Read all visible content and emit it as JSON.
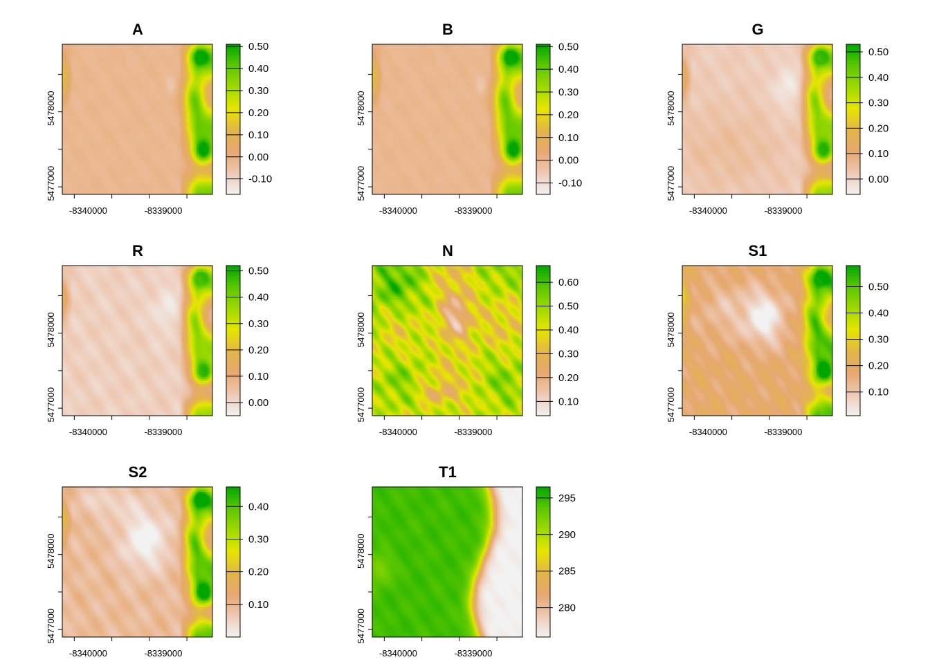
{
  "colors": {
    "ramp": [
      "#F2F2F2",
      "#EEC9B5",
      "#E6A86F",
      "#E2B649",
      "#E6E600",
      "#9FDA00",
      "#5BC700",
      "#00A600"
    ],
    "frame": "#000000",
    "background": "#FFFFFF"
  },
  "chart_data": [
    {
      "type": "heatmap",
      "title": "A",
      "x_ticks": [
        "-8340000",
        "-8339000"
      ],
      "y_ticks": [
        "5477000",
        "5478000"
      ],
      "legend": {
        "ticks": [
          -0.1,
          0.0,
          0.1,
          0.2,
          0.3,
          0.4,
          0.5
        ],
        "tick_labels": [
          "-0.10",
          "0.00",
          "0.10",
          "0.20",
          "0.30",
          "0.40",
          "0.50"
        ],
        "range": [
          -0.17,
          0.51
        ]
      },
      "pattern": "A"
    },
    {
      "type": "heatmap",
      "title": "B",
      "x_ticks": [
        "-8340000",
        "-8339000"
      ],
      "y_ticks": [
        "5477000",
        "5478000"
      ],
      "legend": {
        "ticks": [
          -0.1,
          0.0,
          0.1,
          0.2,
          0.3,
          0.4,
          0.5
        ],
        "tick_labels": [
          "-0.10",
          "0.00",
          "0.10",
          "0.20",
          "0.30",
          "0.40",
          "0.50"
        ],
        "range": [
          -0.15,
          0.51
        ]
      },
      "pattern": "A"
    },
    {
      "type": "heatmap",
      "title": "G",
      "x_ticks": [
        "-8340000",
        "-8339000"
      ],
      "y_ticks": [
        "5477000",
        "5478000"
      ],
      "legend": {
        "ticks": [
          0.0,
          0.1,
          0.2,
          0.3,
          0.4,
          0.5
        ],
        "tick_labels": [
          "0.00",
          "0.10",
          "0.20",
          "0.30",
          "0.40",
          "0.50"
        ],
        "range": [
          -0.06,
          0.53
        ]
      },
      "pattern": "G"
    },
    {
      "type": "heatmap",
      "title": "R",
      "x_ticks": [
        "-8340000",
        "-8339000"
      ],
      "y_ticks": [
        "5477000",
        "5478000"
      ],
      "legend": {
        "ticks": [
          0.0,
          0.1,
          0.2,
          0.3,
          0.4,
          0.5
        ],
        "tick_labels": [
          "0.00",
          "0.10",
          "0.20",
          "0.30",
          "0.40",
          "0.50"
        ],
        "range": [
          -0.05,
          0.52
        ]
      },
      "pattern": "R"
    },
    {
      "type": "heatmap",
      "title": "N",
      "x_ticks": [
        "-8340000",
        "-8339000"
      ],
      "y_ticks": [
        "5477000",
        "5478000"
      ],
      "legend": {
        "ticks": [
          0.1,
          0.2,
          0.3,
          0.4,
          0.5,
          0.6
        ],
        "tick_labels": [
          "0.10",
          "0.20",
          "0.30",
          "0.40",
          "0.50",
          "0.60"
        ],
        "range": [
          0.04,
          0.67
        ]
      },
      "pattern": "N"
    },
    {
      "type": "heatmap",
      "title": "S1",
      "x_ticks": [
        "-8340000",
        "-8339000"
      ],
      "y_ticks": [
        "5477000",
        "5478000"
      ],
      "legend": {
        "ticks": [
          0.1,
          0.2,
          0.3,
          0.4,
          0.5
        ],
        "tick_labels": [
          "0.10",
          "0.20",
          "0.30",
          "0.40",
          "0.50"
        ],
        "range": [
          0.01,
          0.58
        ]
      },
      "pattern": "S1"
    },
    {
      "type": "heatmap",
      "title": "S2",
      "x_ticks": [
        "-8340000",
        "-8339000"
      ],
      "y_ticks": [
        "5477000",
        "5478000"
      ],
      "legend": {
        "ticks": [
          0.1,
          0.2,
          0.3,
          0.4
        ],
        "tick_labels": [
          "0.10",
          "0.20",
          "0.30",
          "0.40"
        ],
        "range": [
          0.0,
          0.46
        ]
      },
      "pattern": "S2"
    },
    {
      "type": "heatmap",
      "title": "T1",
      "x_ticks": [
        "-8340000",
        "-8339000"
      ],
      "y_ticks": [
        "5477000",
        "5478000"
      ],
      "legend": {
        "ticks": [
          280,
          285,
          290,
          295
        ],
        "tick_labels": [
          "280",
          "285",
          "290",
          "295"
        ],
        "range": [
          276,
          296.5
        ]
      },
      "pattern": "T1"
    }
  ]
}
